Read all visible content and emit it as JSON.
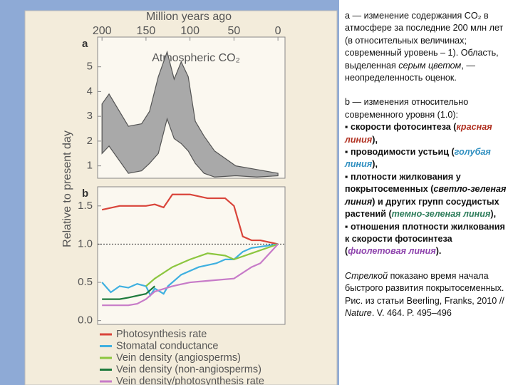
{
  "chart_data": [
    {
      "type": "range",
      "label": "a",
      "title": "Atmospheric CO₂",
      "xlabel": "Million years ago",
      "xlim": [
        205,
        -8
      ],
      "xticks": [
        200,
        150,
        100,
        50,
        0
      ],
      "ylim": [
        0.5,
        6.2
      ],
      "yticks": [
        1,
        2,
        3,
        4,
        5
      ],
      "x": [
        200,
        192,
        170,
        155,
        146,
        136,
        126,
        118,
        110,
        102,
        94,
        84,
        72,
        48,
        24,
        0
      ],
      "upper": [
        3.5,
        3.9,
        2.6,
        2.7,
        3.2,
        4.6,
        5.6,
        4.5,
        5.2,
        4.6,
        2.8,
        2.2,
        1.6,
        1.0,
        0.85,
        0.7
      ],
      "lower": [
        1.5,
        1.8,
        0.7,
        0.8,
        1.1,
        1.5,
        2.9,
        2.1,
        1.9,
        1.6,
        1.1,
        0.7,
        0.55,
        0.6,
        0.55,
        0.6
      ],
      "color": "#a9a9a9"
    },
    {
      "type": "line",
      "label": "b",
      "ylabel": "Relative to present day",
      "xlim": [
        205,
        -8
      ],
      "ylim": [
        -0.05,
        1.75
      ],
      "yticks": [
        {
          "value": 0,
          "label": "0.0"
        },
        0.5,
        {
          "value": 1,
          "label": "1.0"
        },
        1.5
      ],
      "reference_line": 1,
      "legend": "bottom",
      "series": [
        {
          "name": "Photosynthesis rate",
          "color": "#d9443a",
          "x": [
            200,
            180,
            150,
            140,
            130,
            120,
            100,
            80,
            60,
            50,
            40,
            30,
            20,
            0
          ],
          "values": [
            1.45,
            1.5,
            1.5,
            1.52,
            1.48,
            1.65,
            1.65,
            1.6,
            1.6,
            1.5,
            1.1,
            1.05,
            1.05,
            1.0
          ]
        },
        {
          "name": "Stomatal conductance",
          "color": "#3fb0e0",
          "x": [
            200,
            190,
            180,
            170,
            160,
            150,
            145,
            140,
            130,
            125,
            110,
            90,
            70,
            60,
            50,
            40,
            30,
            0
          ],
          "values": [
            0.5,
            0.37,
            0.45,
            0.43,
            0.48,
            0.45,
            0.33,
            0.42,
            0.35,
            0.45,
            0.6,
            0.7,
            0.75,
            0.8,
            0.8,
            0.9,
            0.95,
            1.0
          ]
        },
        {
          "name": "Vein density (angiosperms)",
          "color": "#8cc63f",
          "x": [
            150,
            140,
            120,
            100,
            80,
            60,
            50,
            30,
            0
          ],
          "values": [
            0.45,
            0.55,
            0.7,
            0.8,
            0.88,
            0.85,
            0.8,
            0.88,
            1.0
          ]
        },
        {
          "name": "Vein density (non-angiosperms)",
          "color": "#1e7a3c",
          "x": [
            200,
            180,
            170,
            150,
            140
          ],
          "values": [
            0.28,
            0.28,
            0.3,
            0.35,
            0.45
          ]
        },
        {
          "name": "Vein density/photosynthesis rate",
          "color": "#c77bc8",
          "x": [
            200,
            170,
            160,
            150,
            140,
            120,
            100,
            80,
            50,
            30,
            20,
            0
          ],
          "values": [
            0.2,
            0.2,
            0.22,
            0.28,
            0.38,
            0.45,
            0.5,
            0.52,
            0.55,
            0.7,
            0.75,
            1.0
          ]
        }
      ]
    }
  ],
  "caption": {
    "paragraphs": [
      [
        [
          {
            "text": "а — изменение содержания CO₂ в атмосфере за последние 200 млн лет (в относительных величинах; современный уровень – 1). Область, выделенная "
          },
          {
            "text": "серым цветом",
            "italic": true
          },
          {
            "text": ", — неопределенность оценок."
          }
        ]
      ],
      [
        [
          {
            "text": "b — изменения относительно современного уровня (1.0):"
          }
        ],
        [
          {
            "text": "▪ скорости фотосинтеза (",
            "bold": true
          },
          {
            "text": "красная линия",
            "bold": true,
            "italic": true,
            "color": "#b03020"
          },
          {
            "text": "),",
            "bold": true
          }
        ],
        [
          {
            "text": "▪ проводимости устьиц (",
            "bold": true
          },
          {
            "text": "голубая линия",
            "bold": true,
            "italic": true,
            "color": "#2f8fc0"
          },
          {
            "text": "),",
            "bold": true
          }
        ],
        [
          {
            "text": "▪ плотности жилкования у покрытосеменных (",
            "bold": true
          },
          {
            "text": "светло-зеленая линия",
            "bold": true,
            "italic": true
          },
          {
            "text": ") и других групп сосудистых растений (",
            "bold": true
          },
          {
            "text": "темно-зеленая линия",
            "bold": true,
            "italic": true,
            "color": "#2e7d5b"
          },
          {
            "text": "),",
            "bold": true
          }
        ],
        [
          {
            "text": "▪ отношения плотности жилкования к скорости фотосинтеза (",
            "bold": true
          },
          {
            "text": "фиолетовая линия",
            "bold": true,
            "italic": true,
            "color": "#8e44ad"
          },
          {
            "text": ").",
            "bold": true
          }
        ]
      ],
      [
        [
          {
            "text": "Стрелкой",
            "italic": true
          },
          {
            "text": " показано время начала быстрого развития покрытосеменных."
          }
        ],
        [
          {
            "text": "Рис. из статьи Beerling, Franks, 2010 // "
          },
          {
            "text": "Nature",
            "italic": true
          },
          {
            "text": ". V. 464. P. 495–496"
          }
        ]
      ]
    ]
  }
}
